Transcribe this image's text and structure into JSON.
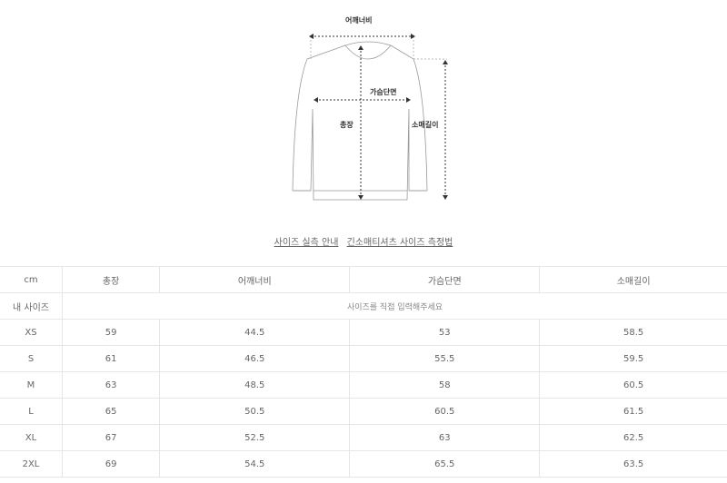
{
  "diagram": {
    "labels": {
      "shoulder": "어깨너비",
      "chest": "가슴단면",
      "length": "총장",
      "sleeve": "소매길이"
    }
  },
  "links": [
    "사이즈 실측 안내",
    "긴소매티셔츠 사이즈 측정법"
  ],
  "table": {
    "headers": [
      "cm",
      "총장",
      "어깨너비",
      "가슴단면",
      "소매길이"
    ],
    "my_size": {
      "label": "내 사이즈",
      "placeholder": "사이즈를 직접 입력해주세요"
    },
    "rows": [
      [
        "XS",
        "59",
        "44.5",
        "53",
        "58.5"
      ],
      [
        "S",
        "61",
        "46.5",
        "55.5",
        "59.5"
      ],
      [
        "M",
        "63",
        "48.5",
        "58",
        "60.5"
      ],
      [
        "L",
        "65",
        "50.5",
        "60.5",
        "61.5"
      ],
      [
        "XL",
        "67",
        "52.5",
        "63",
        "62.5"
      ],
      [
        "2XL",
        "69",
        "54.5",
        "65.5",
        "63.5"
      ]
    ]
  }
}
